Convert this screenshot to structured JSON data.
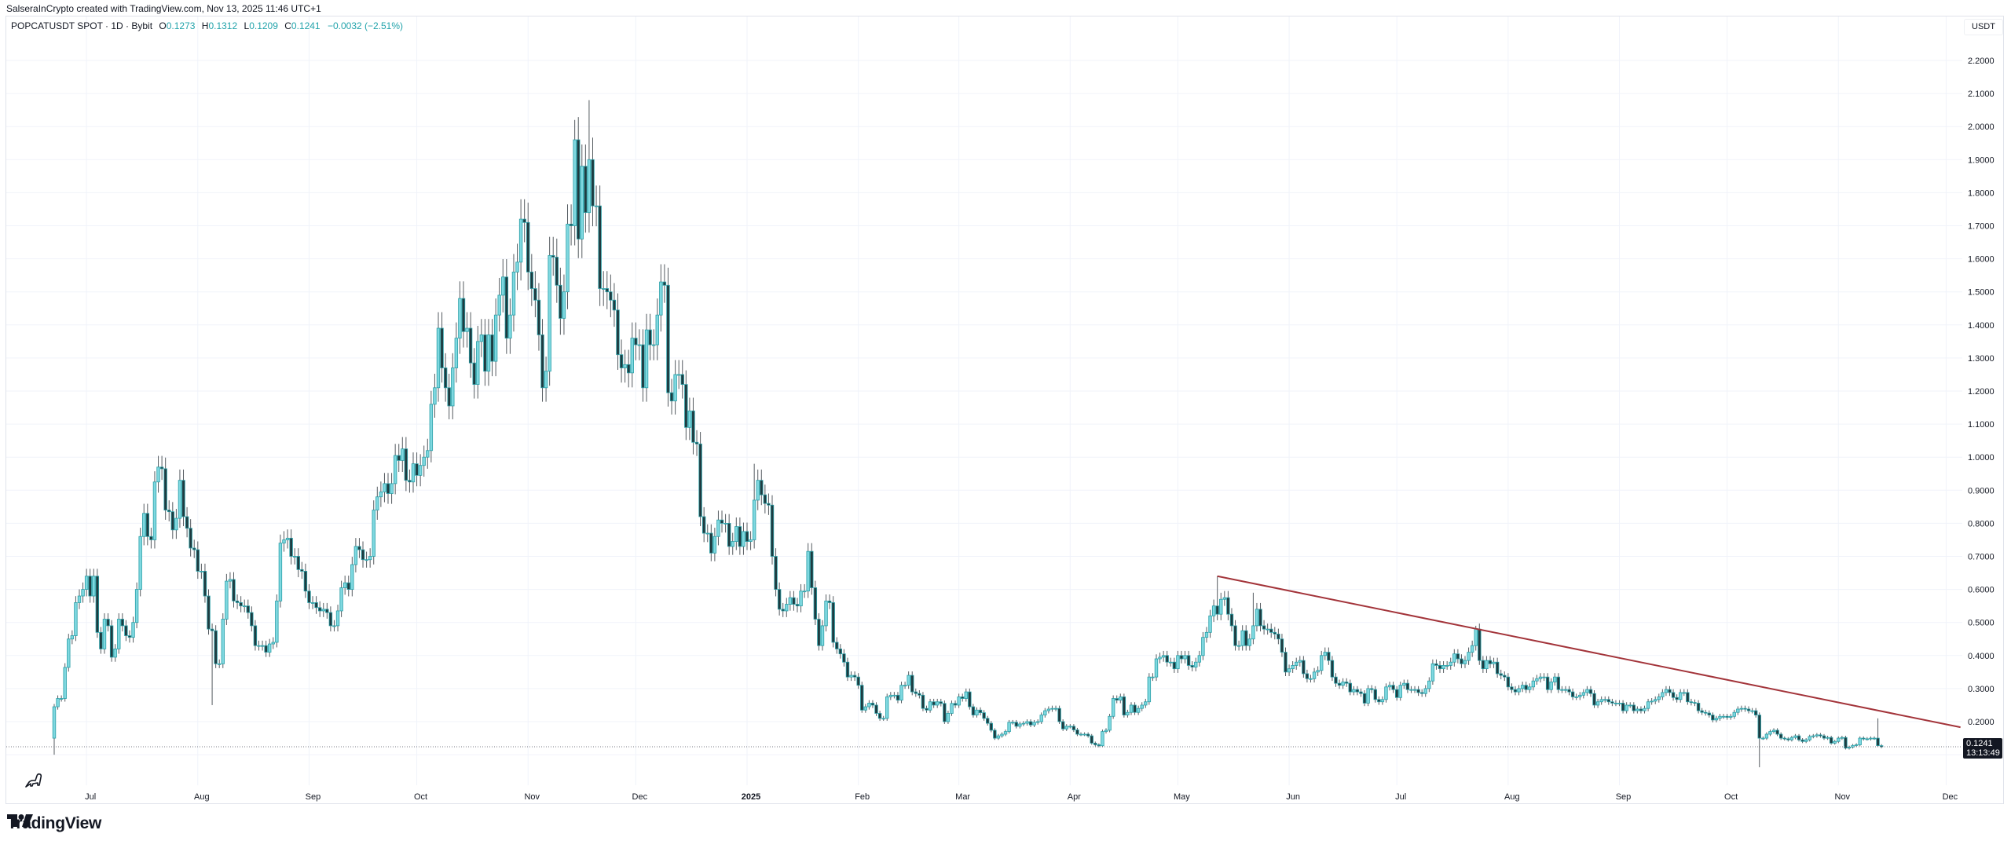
{
  "credit": "SalseraInCrypto created with TradingView.com, Nov 13, 2025 11:46 UTC+1",
  "legend": {
    "symbol": "POPCATUSDT SPOT · 1D · Bybit",
    "o_label": "O",
    "o": "0.1273",
    "h_label": "H",
    "h": "0.1312",
    "l_label": "L",
    "l": "0.1209",
    "c_label": "C",
    "c": "0.1241",
    "change": "−0.0032 (−2.51%)"
  },
  "currency": "USDT",
  "last_price": {
    "value": "0.1241",
    "countdown": "13:13:49"
  },
  "brand": "TradingView",
  "colors": {
    "up_fill": "#7fd8e0",
    "down_fill": "#1f3b40",
    "border": "#2aa0a8",
    "wick": "#555b60",
    "trendline": "#a3343a",
    "grid": "#f0f3fa"
  },
  "chart_data": {
    "type": "candlestick",
    "interval": "1D",
    "start_date": "2024-06-22",
    "first_open": 0.15,
    "closes": [
      0.245,
      0.27,
      0.27,
      0.364,
      0.45,
      0.46,
      0.56,
      0.58,
      0.6,
      0.64,
      0.58,
      0.64,
      0.47,
      0.42,
      0.51,
      0.49,
      0.395,
      0.42,
      0.51,
      0.49,
      0.46,
      0.455,
      0.5,
      0.6,
      0.76,
      0.83,
      0.76,
      0.75,
      0.925,
      0.97,
      0.965,
      0.84,
      0.835,
      0.78,
      0.815,
      0.93,
      0.82,
      0.785,
      0.725,
      0.72,
      0.655,
      0.655,
      0.58,
      0.48,
      0.475,
      0.375,
      0.375,
      0.51,
      0.625,
      0.63,
      0.565,
      0.56,
      0.55,
      0.55,
      0.53,
      0.49,
      0.43,
      0.43,
      0.43,
      0.41,
      0.435,
      0.44,
      0.565,
      0.74,
      0.75,
      0.755,
      0.7,
      0.7,
      0.66,
      0.655,
      0.595,
      0.56,
      0.56,
      0.545,
      0.535,
      0.54,
      0.53,
      0.49,
      0.49,
      0.535,
      0.605,
      0.62,
      0.6,
      0.675,
      0.73,
      0.72,
      0.69,
      0.69,
      0.7,
      0.84,
      0.88,
      0.895,
      0.92,
      0.89,
      0.92,
      1.005,
      0.99,
      1.025,
      0.93,
      0.925,
      0.98,
      0.945,
      0.975,
      1.0,
      1.02,
      1.16,
      1.21,
      1.39,
      1.27,
      1.21,
      1.155,
      1.27,
      1.36,
      1.48,
      1.38,
      1.39,
      1.285,
      1.22,
      1.35,
      1.37,
      1.26,
      1.37,
      1.29,
      1.43,
      1.49,
      1.545,
      1.36,
      1.43,
      1.56,
      1.59,
      1.72,
      1.71,
      1.56,
      1.51,
      1.475,
      1.37,
      1.21,
      1.26,
      1.61,
      1.605,
      1.52,
      1.42,
      1.5,
      1.705,
      1.7,
      1.96,
      1.66,
      1.88,
      1.74,
      1.9,
      1.76,
      1.76,
      1.51,
      1.51,
      1.5,
      1.475,
      1.445,
      1.31,
      1.27,
      1.28,
      1.255,
      1.36,
      1.34,
      1.34,
      1.21,
      1.385,
      1.34,
      1.34,
      1.43,
      1.53,
      1.52,
      1.195,
      1.17,
      1.25,
      1.25,
      1.22,
      1.09,
      1.14,
      1.045,
      1.04,
      0.82,
      0.77,
      0.77,
      0.71,
      0.76,
      0.81,
      0.8,
      0.8,
      0.73,
      0.745,
      0.79,
      0.73,
      0.775,
      0.745,
      0.75,
      0.87,
      0.93,
      0.886,
      0.86,
      0.855,
      0.7,
      0.6,
      0.54,
      0.535,
      0.555,
      0.575,
      0.555,
      0.55,
      0.595,
      0.595,
      0.715,
      0.605,
      0.51,
      0.43,
      0.49,
      0.565,
      0.56,
      0.44,
      0.42,
      0.405,
      0.38,
      0.335,
      0.34,
      0.335,
      0.31,
      0.235,
      0.245,
      0.256,
      0.25,
      0.225,
      0.21,
      0.21,
      0.275,
      0.28,
      0.28,
      0.265,
      0.31,
      0.31,
      0.34,
      0.29,
      0.285,
      0.28,
      0.24,
      0.235,
      0.26,
      0.25,
      0.26,
      0.255,
      0.2,
      0.225,
      0.255,
      0.25,
      0.275,
      0.27,
      0.29,
      0.245,
      0.22,
      0.235,
      0.227,
      0.21,
      0.195,
      0.174,
      0.15,
      0.157,
      0.162,
      0.17,
      0.198,
      0.198,
      0.186,
      0.193,
      0.195,
      0.2,
      0.19,
      0.198,
      0.2,
      0.22,
      0.233,
      0.238,
      0.24,
      0.24,
      0.2,
      0.178,
      0.186,
      0.186,
      0.175,
      0.162,
      0.162,
      0.162,
      0.157,
      0.135,
      0.13,
      0.127,
      0.17,
      0.174,
      0.216,
      0.27,
      0.265,
      0.275,
      0.22,
      0.228,
      0.25,
      0.228,
      0.24,
      0.25,
      0.26,
      0.335,
      0.335,
      0.39,
      0.395,
      0.4,
      0.38,
      0.38,
      0.36,
      0.4,
      0.39,
      0.4,
      0.37,
      0.365,
      0.38,
      0.4,
      0.455,
      0.47,
      0.52,
      0.55,
      0.525,
      0.57,
      0.575,
      0.525,
      0.49,
      0.43,
      0.43,
      0.475,
      0.43,
      0.45,
      0.49,
      0.54,
      0.49,
      0.48,
      0.48,
      0.47,
      0.465,
      0.45,
      0.41,
      0.35,
      0.36,
      0.37,
      0.38,
      0.385,
      0.345,
      0.33,
      0.33,
      0.35,
      0.355,
      0.4,
      0.41,
      0.385,
      0.335,
      0.316,
      0.31,
      0.32,
      0.316,
      0.29,
      0.297,
      0.29,
      0.285,
      0.256,
      0.3,
      0.297,
      0.267,
      0.26,
      0.267,
      0.305,
      0.31,
      0.297,
      0.273,
      0.31,
      0.316,
      0.297,
      0.297,
      0.297,
      0.288,
      0.285,
      0.3,
      0.323,
      0.375,
      0.37,
      0.36,
      0.37,
      0.37,
      0.38,
      0.405,
      0.39,
      0.375,
      0.385,
      0.41,
      0.43,
      0.48,
      0.385,
      0.36,
      0.385,
      0.375,
      0.38,
      0.345,
      0.34,
      0.335,
      0.305,
      0.297,
      0.29,
      0.3,
      0.31,
      0.297,
      0.305,
      0.323,
      0.33,
      0.335,
      0.335,
      0.297,
      0.32,
      0.335,
      0.297,
      0.297,
      0.297,
      0.29,
      0.275,
      0.275,
      0.28,
      0.288,
      0.297,
      0.285,
      0.25,
      0.26,
      0.267,
      0.267,
      0.26,
      0.256,
      0.256,
      0.256,
      0.233,
      0.25,
      0.25,
      0.233,
      0.238,
      0.233,
      0.24,
      0.26,
      0.262,
      0.267,
      0.275,
      0.288,
      0.297,
      0.288,
      0.273,
      0.267,
      0.288,
      0.288,
      0.26,
      0.258,
      0.256,
      0.233,
      0.228,
      0.226,
      0.22,
      0.205,
      0.21,
      0.216,
      0.216,
      0.213,
      0.216,
      0.228,
      0.238,
      0.24,
      0.238,
      0.233,
      0.233,
      0.22,
      0.15,
      0.15,
      0.162,
      0.17,
      0.174,
      0.162,
      0.15,
      0.148,
      0.145,
      0.152,
      0.157,
      0.145,
      0.14,
      0.145,
      0.155,
      0.157,
      0.16,
      0.157,
      0.15,
      0.152,
      0.135,
      0.14,
      0.15,
      0.152,
      0.12,
      0.123,
      0.128,
      0.13,
      0.15,
      0.148,
      0.148,
      0.15,
      0.15,
      0.1273,
      0.1241
    ],
    "notable_wicks": [
      {
        "date": "2024-06-22",
        "low": 0.1
      },
      {
        "date": "2024-08-05",
        "low": 0.25
      },
      {
        "date": "2024-11-14",
        "high": 2.02
      },
      {
        "date": "2024-11-18",
        "high": 2.08
      },
      {
        "date": "2025-01-03",
        "high": 0.98
      },
      {
        "date": "2025-05-12",
        "high": 0.64
      },
      {
        "date": "2025-05-22",
        "high": 0.59
      },
      {
        "date": "2025-07-23",
        "high": 0.49
      },
      {
        "date": "2025-10-10",
        "low": 0.062
      },
      {
        "date": "2025-11-12",
        "high": 0.21
      }
    ],
    "trendline": {
      "from": {
        "date": "2025-05-12",
        "price": 0.64
      },
      "to": {
        "date": "2025-12-05",
        "price": 0.183
      }
    },
    "yaxis": {
      "unit": "USDT",
      "range": [
        0.1,
        2.2
      ],
      "ticks": [
        "2.2000",
        "2.1000",
        "2.0000",
        "1.9000",
        "1.8000",
        "1.7000",
        "1.6000",
        "1.5000",
        "1.4000",
        "1.3000",
        "1.2000",
        "1.1000",
        "1.0000",
        "0.9000",
        "0.8000",
        "0.7000",
        "0.6000",
        "0.5000",
        "0.4000",
        "0.3000",
        "0.2000"
      ]
    },
    "xaxis": {
      "ticks": [
        {
          "label": "Jul",
          "date": "2024-07-01"
        },
        {
          "label": "Aug",
          "date": "2024-08-01"
        },
        {
          "label": "Sep",
          "date": "2024-09-01"
        },
        {
          "label": "Oct",
          "date": "2024-10-01"
        },
        {
          "label": "Nov",
          "date": "2024-11-01"
        },
        {
          "label": "Dec",
          "date": "2024-12-01"
        },
        {
          "label": "2025",
          "date": "2025-01-01",
          "bold": true
        },
        {
          "label": "Feb",
          "date": "2025-02-01"
        },
        {
          "label": "Mar",
          "date": "2025-03-01"
        },
        {
          "label": "Apr",
          "date": "2025-04-01"
        },
        {
          "label": "May",
          "date": "2025-05-01"
        },
        {
          "label": "Jun",
          "date": "2025-06-01"
        },
        {
          "label": "Jul",
          "date": "2025-07-01"
        },
        {
          "label": "Aug",
          "date": "2025-08-01"
        },
        {
          "label": "Sep",
          "date": "2025-09-01"
        },
        {
          "label": "Oct",
          "date": "2025-10-01"
        },
        {
          "label": "Nov",
          "date": "2025-11-01"
        },
        {
          "label": "Dec",
          "date": "2025-12-01"
        }
      ]
    },
    "grid": true
  }
}
